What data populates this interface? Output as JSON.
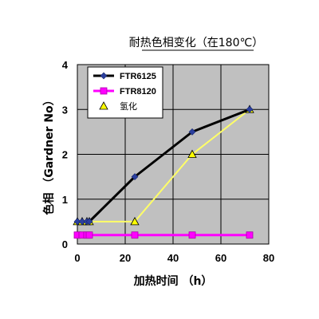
{
  "chart_data": {
    "type": "line",
    "title": "耐热色相变化（在180℃）",
    "xlabel": "加热时间 （h）",
    "ylabel": "色相 （Gardner No）",
    "xlim": [
      0,
      80
    ],
    "ylim": [
      0,
      4
    ],
    "xticks": [
      0,
      20,
      40,
      60,
      80
    ],
    "yticks": [
      0,
      1,
      2,
      3,
      4
    ],
    "grid": true,
    "legend": "top-left",
    "series": [
      {
        "name": "FTR6125",
        "color": "#000000",
        "marker_color": "#2b3f9e",
        "marker": "diamond",
        "x": [
          0,
          2,
          4,
          5,
          24,
          48,
          72
        ],
        "y": [
          0.5,
          0.5,
          0.5,
          0.5,
          1.5,
          2.5,
          3.0
        ]
      },
      {
        "name": "FTR8120",
        "color": "#ff00ff",
        "marker_color": "#ff00ff",
        "marker": "square",
        "x": [
          0,
          2,
          4,
          5,
          24,
          48,
          72
        ],
        "y": [
          0.2,
          0.2,
          0.2,
          0.2,
          0.2,
          0.2,
          0.2
        ]
      },
      {
        "name": "氢化",
        "color": "#ffff66",
        "marker_color": "#ffff00",
        "marker": "triangle",
        "x": [
          0,
          2,
          4,
          5,
          24,
          48,
          72
        ],
        "y": [
          0.5,
          0.5,
          0.5,
          0.5,
          0.5,
          2.0,
          3.0
        ]
      }
    ]
  }
}
